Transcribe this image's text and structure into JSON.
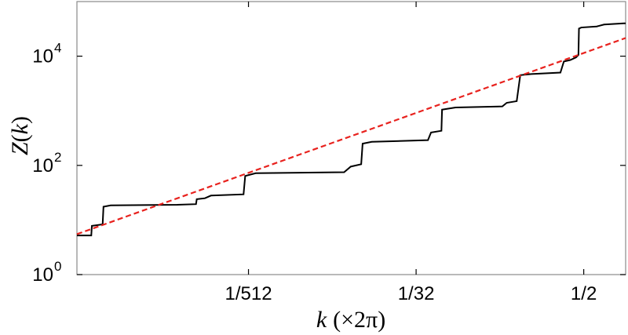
{
  "chart_data": {
    "type": "line",
    "title": "",
    "xlabel": "k (×2π)",
    "ylabel": "Z(k)",
    "xlabel_parts": {
      "var": "k",
      "unit": "(×2π)"
    },
    "ylabel_parts": {
      "func": "Z",
      "open": "(",
      "var": "k",
      "close": ")"
    },
    "x_scale": "log2",
    "y_scale": "log10",
    "xlim": [
      0.0001144,
      1.0
    ],
    "ylim": [
      1,
      100000
    ],
    "x_ticks": [
      {
        "value": 0.001953125,
        "label": "1/512"
      },
      {
        "value": 0.03125,
        "label": "1/32"
      },
      {
        "value": 0.5,
        "label": "1/2"
      }
    ],
    "y_ticks": [
      {
        "value": 1,
        "base": "10",
        "exp": "0"
      },
      {
        "value": 100,
        "base": "10",
        "exp": "2"
      },
      {
        "value": 10000,
        "base": "10",
        "exp": "4"
      }
    ],
    "grid": false,
    "legend": "none",
    "series": [
      {
        "style": "solid",
        "color": "#000000",
        "points": [
          [
            0.0001144,
            5.2
          ],
          [
            0.000145,
            5.2
          ],
          [
            0.0001465,
            7.8
          ],
          [
            0.000175,
            8.3
          ],
          [
            0.0001775,
            17.5
          ],
          [
            0.0002,
            18.5
          ],
          [
            0.0006,
            19.0
          ],
          [
            0.00082,
            19.5
          ],
          [
            0.00083,
            24.0
          ],
          [
            0.00095,
            25.0
          ],
          [
            0.00105,
            28.0
          ],
          [
            0.0018,
            29.5
          ],
          [
            0.00185,
            64.0
          ],
          [
            0.0022,
            72.0
          ],
          [
            0.0095,
            75.0
          ],
          [
            0.0106,
            95.0
          ],
          [
            0.0126,
            105.0
          ],
          [
            0.0129,
            250.0
          ],
          [
            0.015,
            270.0
          ],
          [
            0.038,
            290.0
          ],
          [
            0.04,
            400.0
          ],
          [
            0.0475,
            430.0
          ],
          [
            0.048,
            1050.0
          ],
          [
            0.06,
            1150.0
          ],
          [
            0.13,
            1200.0
          ],
          [
            0.14,
            1400.0
          ],
          [
            0.165,
            1500.0
          ],
          [
            0.175,
            4500.0
          ],
          [
            0.21,
            4700.0
          ],
          [
            0.34,
            5000.0
          ],
          [
            0.36,
            8000.0
          ],
          [
            0.4,
            8500.0
          ],
          [
            0.44,
            9500.0
          ],
          [
            0.458,
            10500.0
          ],
          [
            0.462,
            32000.0
          ],
          [
            0.48,
            33500.0
          ],
          [
            0.62,
            35000.0
          ],
          [
            0.7,
            38000.0
          ],
          [
            0.97,
            40000.0
          ],
          [
            1.0,
            40000.0
          ]
        ]
      },
      {
        "style": "dashed",
        "color": "#e8221e",
        "points": [
          [
            0.0001144,
            5.5
          ],
          [
            1.0,
            21500.0
          ]
        ]
      }
    ]
  }
}
